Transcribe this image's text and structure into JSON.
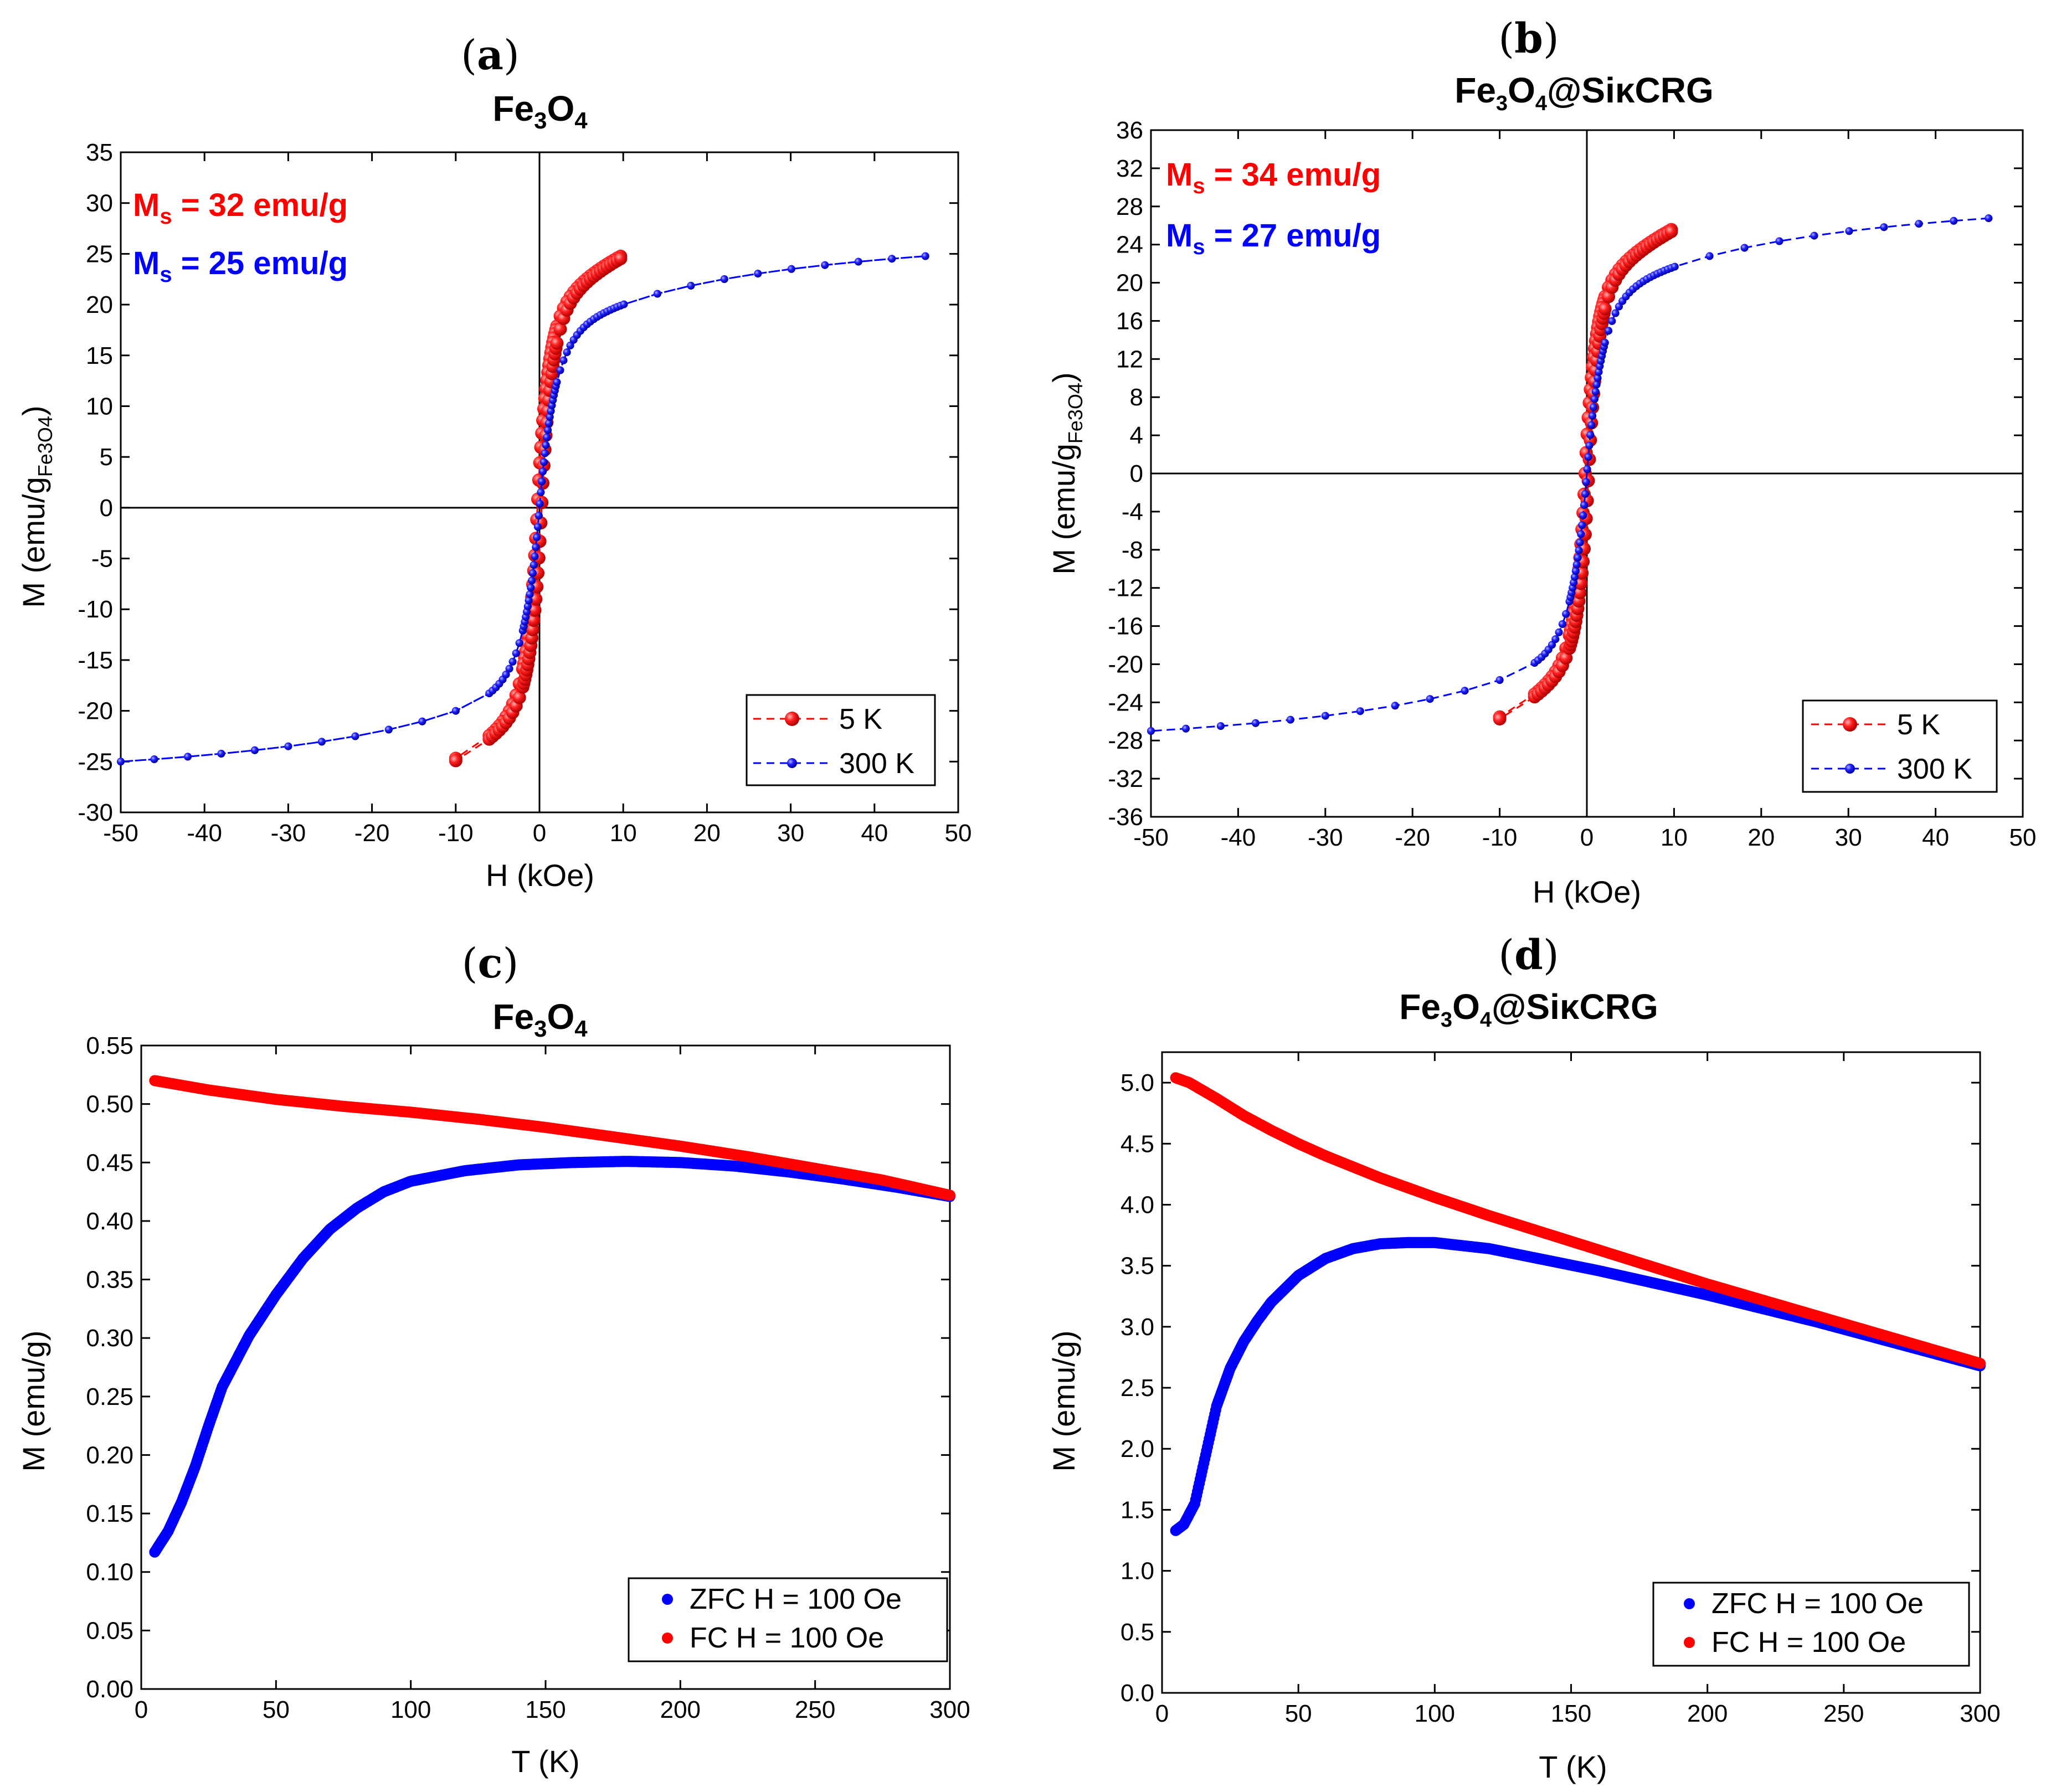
{
  "figure": {
    "colors": {
      "red": "#ff0000",
      "blue": "#0000ff",
      "axis": "#000000"
    }
  },
  "chart_data": [
    {
      "panel": "a",
      "type": "line",
      "title": {
        "main": "Fe",
        "sub1": "3",
        "mid": "O",
        "sub2": "4",
        "tail": ""
      },
      "xlabel": "H (kOe)",
      "ylabel": {
        "main": "M (emu/g",
        "sub": "Fe3O4",
        "tail": ")"
      },
      "xlim": [
        -50,
        50
      ],
      "ylim": [
        -30,
        35
      ],
      "xticks": [
        -50,
        -40,
        -30,
        -20,
        -10,
        0,
        10,
        20,
        30,
        40,
        50
      ],
      "yticks": [
        -30,
        -25,
        -20,
        -15,
        -10,
        -5,
        0,
        5,
        10,
        15,
        20,
        25,
        30,
        35
      ],
      "annotations": [
        {
          "sym": "M",
          "sub": "s",
          "text": " = 32 emu/g",
          "color": "#ff0000"
        },
        {
          "sym": "M",
          "sub": "s",
          "text": " = 25 emu/g",
          "color": "#0000ff"
        }
      ],
      "series": [
        {
          "name": "5 K",
          "color": "#ff0000",
          "Ms": 32,
          "Hmax": 10,
          "Hext": 50,
          "hc": 0.25,
          "a": 1.1,
          "k": 0.52,
          "b": 17,
          "markers": "large",
          "noise": 0.0
        },
        {
          "name": "300 K",
          "color": "#0000ff",
          "Ms": 25,
          "Hmax": 50,
          "Hext": 50,
          "hc": 0.0,
          "a": 1.7,
          "k": 0.45,
          "b": 21,
          "markers": "small",
          "noise": 0.0
        }
      ]
    },
    {
      "panel": "b",
      "type": "line",
      "title": {
        "main": "Fe",
        "sub1": "3",
        "mid": "O",
        "sub2": "4",
        "tail": "@SiκCRG"
      },
      "xlabel": "H (kOe)",
      "ylabel": {
        "main": "M (emu/g",
        "sub": "Fe3O4",
        "tail": ")"
      },
      "xlim": [
        -50,
        50
      ],
      "ylim": [
        -36,
        36
      ],
      "xticks": [
        -50,
        -40,
        -30,
        -20,
        -10,
        0,
        10,
        20,
        30,
        40,
        50
      ],
      "yticks": [
        -36,
        -32,
        -28,
        -24,
        -20,
        -16,
        -12,
        -8,
        -4,
        0,
        4,
        8,
        12,
        16,
        20,
        24,
        28,
        32,
        36
      ],
      "annotations": [
        {
          "sym": "M",
          "sub": "s",
          "text": " = 34 emu/g",
          "color": "#ff0000"
        },
        {
          "sym": "M",
          "sub": "s",
          "text": " = 27 emu/g",
          "color": "#0000ff"
        }
      ],
      "series": [
        {
          "name": "5 K",
          "color": "#ff0000",
          "Ms": 34,
          "Hmax": 10,
          "Hext": 50,
          "hc": 0.2,
          "a": 1.0,
          "k": 0.55,
          "b": 19,
          "markers": "large",
          "noise": 0.9
        },
        {
          "name": "300 K",
          "color": "#0000ff",
          "Ms": 27,
          "Hmax": 50,
          "Hext": 50,
          "hc": 0.0,
          "a": 1.6,
          "k": 0.45,
          "b": 20,
          "markers": "small",
          "noise": 0.0
        }
      ]
    },
    {
      "panel": "c",
      "type": "scatter",
      "title": {
        "main": "Fe",
        "sub1": "3",
        "mid": "O",
        "sub2": "4",
        "tail": ""
      },
      "xlabel": "T (K)",
      "ylabel": {
        "main": "M (emu/g)",
        "sub": "",
        "tail": ""
      },
      "xlim": [
        0,
        300
      ],
      "ylim": [
        0,
        0.55
      ],
      "xticks": [
        0,
        50,
        100,
        150,
        200,
        250,
        300
      ],
      "yticks": [
        0.0,
        0.05,
        0.1,
        0.15,
        0.2,
        0.25,
        0.3,
        0.35,
        0.4,
        0.45,
        0.5,
        0.55
      ],
      "ytick_decimals": 2,
      "series": [
        {
          "name": "ZFC H = 100 Oe",
          "color": "#0000ff",
          "T": [
            5,
            10,
            15,
            20,
            25,
            30,
            40,
            50,
            60,
            70,
            80,
            90,
            100,
            120,
            140,
            160,
            180,
            200,
            220,
            240,
            260,
            280,
            300
          ],
          "M": [
            0.117,
            0.135,
            0.16,
            0.19,
            0.225,
            0.258,
            0.302,
            0.337,
            0.368,
            0.393,
            0.411,
            0.425,
            0.434,
            0.443,
            0.448,
            0.45,
            0.451,
            0.45,
            0.447,
            0.442,
            0.436,
            0.429,
            0.421
          ]
        },
        {
          "name": "FC H = 100 Oe",
          "color": "#ff0000",
          "T": [
            5,
            25,
            50,
            75,
            100,
            125,
            150,
            175,
            200,
            225,
            250,
            275,
            300
          ],
          "M": [
            0.52,
            0.512,
            0.504,
            0.498,
            0.493,
            0.487,
            0.48,
            0.472,
            0.464,
            0.455,
            0.445,
            0.435,
            0.422
          ]
        }
      ]
    },
    {
      "panel": "d",
      "type": "scatter",
      "title": {
        "main": "Fe",
        "sub1": "3",
        "mid": "O",
        "sub2": "4",
        "tail": "@SiκCRG"
      },
      "xlabel": "T (K)",
      "ylabel": {
        "main": "M (emu/g)",
        "sub": "",
        "tail": ""
      },
      "xlim": [
        0,
        300
      ],
      "ylim": [
        0,
        5.25
      ],
      "xticks": [
        0,
        50,
        100,
        150,
        200,
        250,
        300
      ],
      "yticks": [
        0.0,
        0.5,
        1.0,
        1.5,
        2.0,
        2.5,
        3.0,
        3.5,
        4.0,
        4.5,
        5.0
      ],
      "ytick_decimals": 1,
      "series": [
        {
          "name": "ZFC H = 100 Oe",
          "color": "#0000ff",
          "T": [
            5,
            8,
            12,
            16,
            20,
            25,
            30,
            35,
            40,
            50,
            60,
            70,
            80,
            90,
            100,
            120,
            140,
            160,
            180,
            200,
            220,
            240,
            260,
            280,
            300
          ],
          "M": [
            1.33,
            1.38,
            1.55,
            1.95,
            2.35,
            2.66,
            2.88,
            3.05,
            3.2,
            3.42,
            3.56,
            3.64,
            3.68,
            3.69,
            3.69,
            3.64,
            3.55,
            3.46,
            3.36,
            3.26,
            3.15,
            3.04,
            2.92,
            2.8,
            2.68
          ]
        },
        {
          "name": "FC H = 100 Oe",
          "color": "#ff0000",
          "T": [
            5,
            10,
            20,
            30,
            40,
            50,
            60,
            70,
            80,
            90,
            100,
            120,
            140,
            160,
            180,
            200,
            220,
            240,
            260,
            280,
            300
          ],
          "M": [
            5.04,
            5.0,
            4.87,
            4.73,
            4.61,
            4.5,
            4.4,
            4.31,
            4.22,
            4.14,
            4.06,
            3.91,
            3.77,
            3.63,
            3.49,
            3.35,
            3.22,
            3.09,
            2.96,
            2.83,
            2.7
          ]
        }
      ]
    }
  ]
}
